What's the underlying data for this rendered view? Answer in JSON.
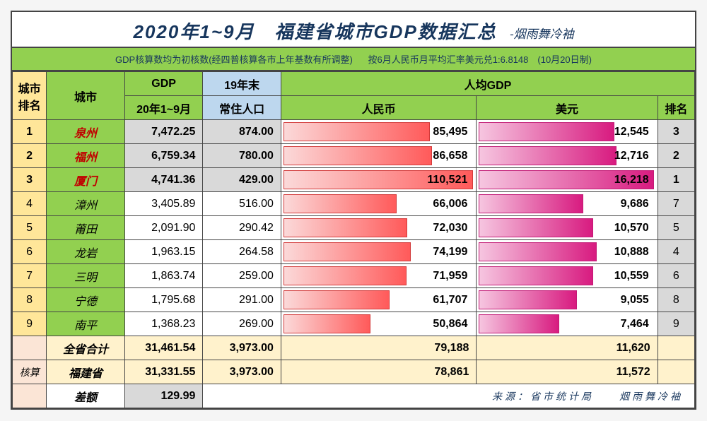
{
  "title": "2020年1~9月　福建省城市GDP数据汇总",
  "author": "-烟雨舞冷袖",
  "subtitle_left": "GDP核算数均为初核数(经四普核算各市上年基数有所调整)",
  "subtitle_right": "按6月人民币月平均汇率美元兑1:6.8148　(10月20日制)",
  "headers": {
    "rank": "城市\n排名",
    "city": "城市",
    "gdp_top": "GDP",
    "gdp_sub": "20年1~9月",
    "pop_top": "19年末",
    "pop_sub": "常住人口",
    "per_top": "人均GDP",
    "rmb": "人民币",
    "usd": "美元",
    "prank": "排名"
  },
  "rows": [
    {
      "rank": "1",
      "city": "泉州",
      "gdp": "7,472.25",
      "pop": "874.00",
      "rmb": 85495,
      "rmb_txt": "85,495",
      "usd": 12545,
      "usd_txt": "12,545",
      "prank": "3",
      "top3": true
    },
    {
      "rank": "2",
      "city": "福州",
      "gdp": "6,759.34",
      "pop": "780.00",
      "rmb": 86658,
      "rmb_txt": "86,658",
      "usd": 12716,
      "usd_txt": "12,716",
      "prank": "2",
      "top3": true
    },
    {
      "rank": "3",
      "city": "厦门",
      "gdp": "4,741.36",
      "pop": "429.00",
      "rmb": 110521,
      "rmb_txt": "110,521",
      "usd": 16218,
      "usd_txt": "16,218",
      "prank": "1",
      "top3": true
    },
    {
      "rank": "4",
      "city": "漳州",
      "gdp": "3,405.89",
      "pop": "516.00",
      "rmb": 66006,
      "rmb_txt": "66,006",
      "usd": 9686,
      "usd_txt": "9,686",
      "prank": "7",
      "top3": false
    },
    {
      "rank": "5",
      "city": "莆田",
      "gdp": "2,091.90",
      "pop": "290.42",
      "rmb": 72030,
      "rmb_txt": "72,030",
      "usd": 10570,
      "usd_txt": "10,570",
      "prank": "5",
      "top3": false
    },
    {
      "rank": "6",
      "city": "龙岩",
      "gdp": "1,963.15",
      "pop": "264.58",
      "rmb": 74199,
      "rmb_txt": "74,199",
      "usd": 10888,
      "usd_txt": "10,888",
      "prank": "4",
      "top3": false
    },
    {
      "rank": "7",
      "city": "三明",
      "gdp": "1,863.74",
      "pop": "259.00",
      "rmb": 71959,
      "rmb_txt": "71,959",
      "usd": 10559,
      "usd_txt": "10,559",
      "prank": "6",
      "top3": false
    },
    {
      "rank": "8",
      "city": "宁德",
      "gdp": "1,795.68",
      "pop": "291.00",
      "rmb": 61707,
      "rmb_txt": "61,707",
      "usd": 9055,
      "usd_txt": "9,055",
      "prank": "8",
      "top3": false
    },
    {
      "rank": "9",
      "city": "南平",
      "gdp": "1,368.23",
      "pop": "269.00",
      "rmb": 50864,
      "rmb_txt": "50,864",
      "usd": 7464,
      "usd_txt": "7,464",
      "prank": "9",
      "top3": false
    }
  ],
  "bar_max_rmb": 110521,
  "bar_max_usd": 16218,
  "bar_full_w_rmb": 268,
  "bar_full_w_usd": 248,
  "totals": {
    "label_sum": "全省合计",
    "label_official": "福建省",
    "label_diff": "差额",
    "label_huesuan": "核算",
    "sum_gdp": "31,461.54",
    "sum_pop": "3,973.00",
    "sum_rmb": "79,188",
    "sum_usd": "11,620",
    "off_gdp": "31,331.55",
    "off_pop": "3,973.00",
    "off_rmb": "78,861",
    "off_usd": "11,572",
    "diff_gdp": "129.99",
    "footer_credit": "来源：省市统计局　　烟雨舞冷袖"
  },
  "colors": {
    "header_green": "#92d050",
    "yellow": "#ffe699",
    "lblue": "#bdd7ee",
    "gray": "#d9d9d9",
    "peach": "#fbe5d6",
    "cream": "#fff2cc",
    "title_blue": "#17365d",
    "top3_red": "#c00000",
    "rmb_bar_start": "#fbd9d9",
    "rmb_bar_end": "#ff5a5a",
    "usd_bar_start": "#f6c6e0",
    "usd_bar_end": "#d81b80"
  }
}
